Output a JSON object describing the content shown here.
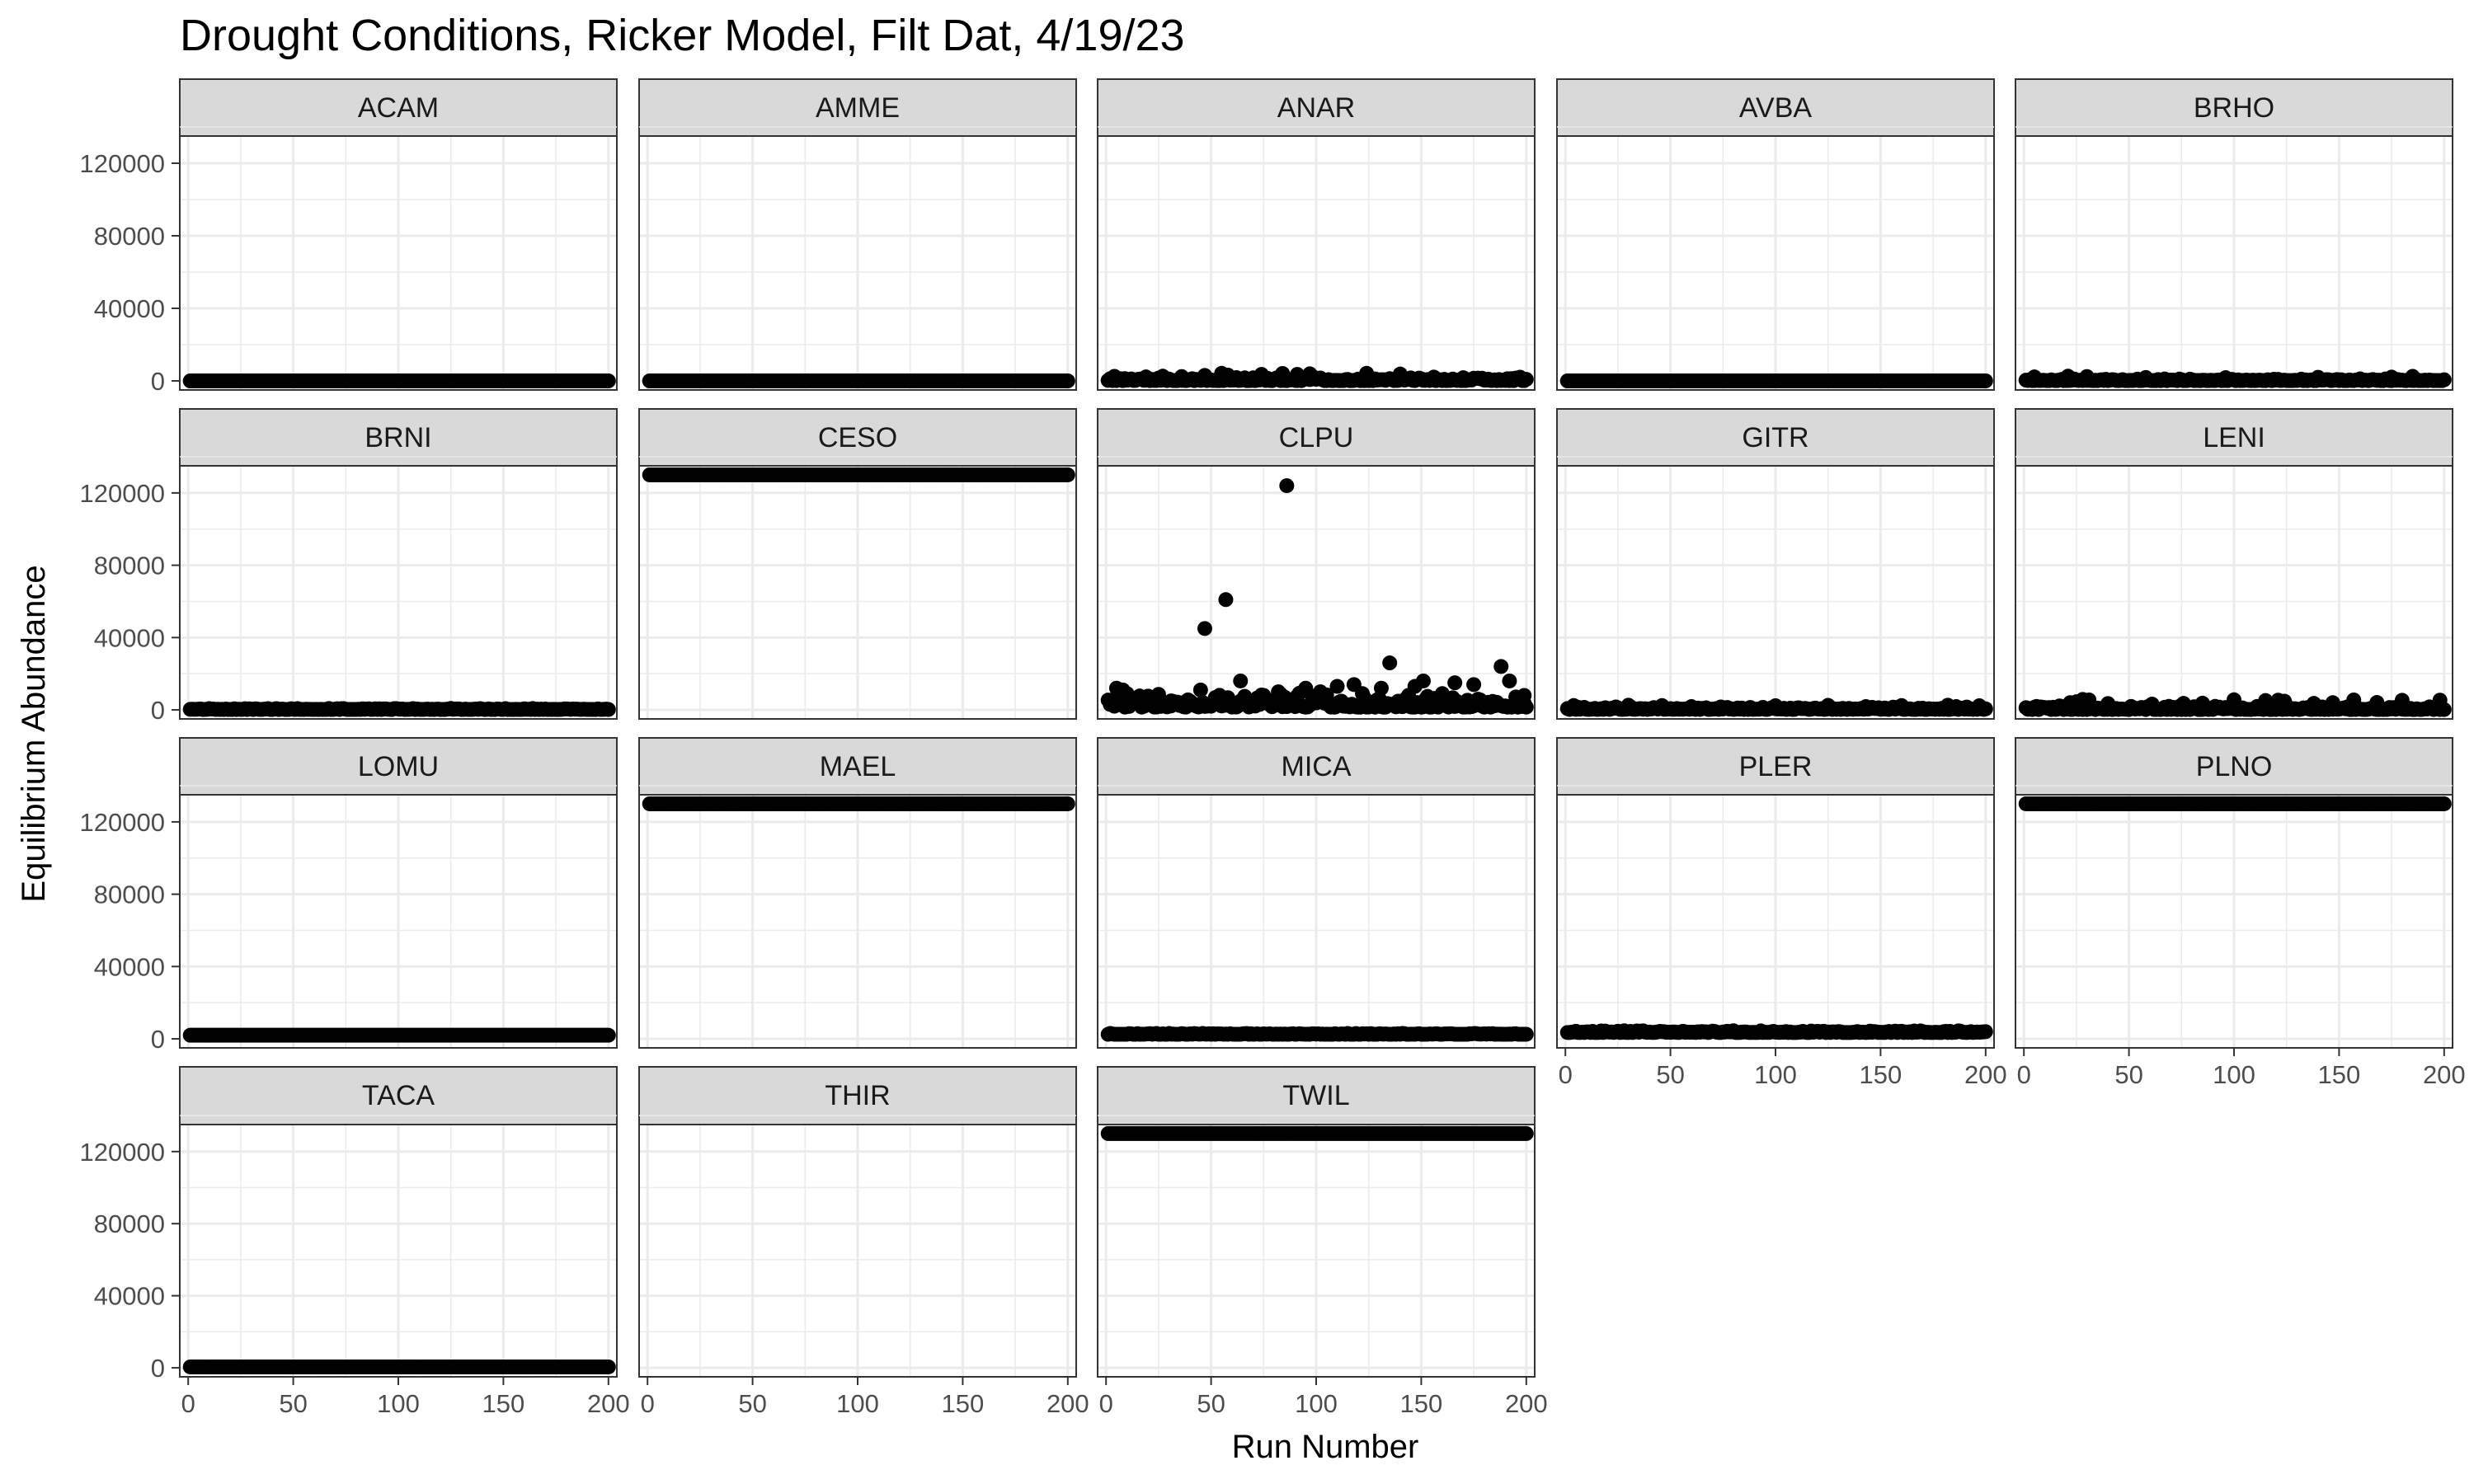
{
  "chart_data": {
    "type": "scatter",
    "title": "Drought Conditions, Ricker Model, Filt Dat, 4/19/23",
    "xlabel": "Run Number",
    "ylabel": "Equilibrium Abundance",
    "xlim": [
      -4,
      204
    ],
    "ylim": [
      -5000,
      135000
    ],
    "x_ticks": [
      0,
      50,
      100,
      150,
      200
    ],
    "y_ticks": [
      0,
      40000,
      80000,
      120000
    ],
    "x_tick_labels": [
      "0",
      "50",
      "100",
      "150",
      "200"
    ],
    "y_tick_labels": [
      "0",
      "40000",
      "80000",
      "120000"
    ],
    "grid": true,
    "point_color": "#000000",
    "panel_fill": "#ffffff",
    "strip_fill": "#d9d9d9",
    "grid_color": "#ebebeb",
    "x": {
      "start": 1,
      "end": 200
    },
    "panels": [
      {
        "name": "ACAM",
        "series": {
          "kind": "flat",
          "y": 0
        }
      },
      {
        "name": "AMME",
        "series": {
          "kind": "flat",
          "y": 0
        }
      },
      {
        "name": "ANAR",
        "series": {
          "kind": "noisy",
          "base": 150,
          "amp": 2000,
          "extras": [
            [
              4,
              2500
            ],
            [
              19,
              2200
            ],
            [
              27,
              2600
            ],
            [
              36,
              2400
            ],
            [
              47,
              3000
            ],
            [
              55,
              4200
            ],
            [
              58,
              3200
            ],
            [
              74,
              3600
            ],
            [
              84,
              4100
            ],
            [
              91,
              3600
            ],
            [
              97,
              3900
            ],
            [
              124,
              4200
            ],
            [
              140,
              3800
            ],
            [
              156,
              2100
            ]
          ]
        }
      },
      {
        "name": "AVBA",
        "series": {
          "kind": "flat",
          "y": 0
        }
      },
      {
        "name": "BRHO",
        "series": {
          "kind": "noisy",
          "base": 150,
          "amp": 1200,
          "extras": [
            [
              5,
              2200
            ],
            [
              21,
              2600
            ],
            [
              30,
              2400
            ],
            [
              58,
              1900
            ],
            [
              96,
              1800
            ],
            [
              140,
              2000
            ],
            [
              175,
              2100
            ],
            [
              185,
              2500
            ]
          ]
        }
      },
      {
        "name": "BRNI",
        "series": {
          "kind": "noisy",
          "base": 200,
          "amp": 700,
          "extras": []
        }
      },
      {
        "name": "CESO",
        "series": {
          "kind": "flat",
          "y": 130000
        }
      },
      {
        "name": "CLPU",
        "series": {
          "kind": "noisy",
          "base": 1500,
          "amp": 9000,
          "extras": [
            [
              2,
              3000
            ],
            [
              5,
              12000
            ],
            [
              8,
              11000
            ],
            [
              10,
              9000
            ],
            [
              20,
              6000
            ],
            [
              31,
              5000
            ],
            [
              45,
              11000
            ],
            [
              47,
              45000
            ],
            [
              55,
              7000
            ],
            [
              57,
              61000
            ],
            [
              64,
              16000
            ],
            [
              75,
              8000
            ],
            [
              82,
              10000
            ],
            [
              86,
              124000
            ],
            [
              95,
              12000
            ],
            [
              102,
              10000
            ],
            [
              110,
              13000
            ],
            [
              118,
              14000
            ],
            [
              122,
              9000
            ],
            [
              131,
              12000
            ],
            [
              135,
              26000
            ],
            [
              147,
              13000
            ],
            [
              151,
              16000
            ],
            [
              160,
              9000
            ],
            [
              166,
              15000
            ],
            [
              175,
              14000
            ],
            [
              188,
              24000
            ],
            [
              192,
              16000
            ],
            [
              199,
              8000
            ]
          ]
        }
      },
      {
        "name": "GITR",
        "series": {
          "kind": "noisy",
          "base": 250,
          "amp": 1800,
          "extras": [
            [
              4,
              2400
            ],
            [
              30,
              2600
            ],
            [
              46,
              2400
            ],
            [
              100,
              2300
            ],
            [
              125,
              2500
            ],
            [
              160,
              2400
            ],
            [
              182,
              2600
            ],
            [
              197,
              2300
            ]
          ]
        }
      },
      {
        "name": "LENI",
        "series": {
          "kind": "noisy",
          "base": 200,
          "amp": 2200,
          "extras": [
            [
              22,
              4000
            ],
            [
              25,
              4500
            ],
            [
              28,
              5800
            ],
            [
              31,
              5500
            ],
            [
              40,
              3500
            ],
            [
              61,
              3200
            ],
            [
              76,
              3600
            ],
            [
              85,
              3700
            ],
            [
              100,
              5600
            ],
            [
              115,
              5200
            ],
            [
              121,
              5400
            ],
            [
              124,
              4800
            ],
            [
              138,
              3600
            ],
            [
              147,
              4000
            ],
            [
              157,
              5500
            ],
            [
              168,
              4100
            ],
            [
              180,
              5300
            ],
            [
              198,
              5400
            ]
          ]
        }
      },
      {
        "name": "LOMU",
        "series": {
          "kind": "flat",
          "y": 2000
        }
      },
      {
        "name": "MAEL",
        "series": {
          "kind": "flat",
          "y": 130000
        }
      },
      {
        "name": "MICA",
        "series": {
          "kind": "noisy",
          "base": 2500,
          "amp": 600,
          "extras": []
        }
      },
      {
        "name": "PLER",
        "series": {
          "kind": "noisy",
          "base": 3500,
          "amp": 1200,
          "extras": []
        }
      },
      {
        "name": "PLNO",
        "series": {
          "kind": "flat",
          "y": 130000
        }
      },
      {
        "name": "TACA",
        "series": {
          "kind": "flat",
          "y": 500
        }
      },
      {
        "name": "THIR",
        "series": {
          "kind": "none"
        }
      },
      {
        "name": "TWIL",
        "series": {
          "kind": "flat",
          "y": 130000
        }
      }
    ]
  }
}
